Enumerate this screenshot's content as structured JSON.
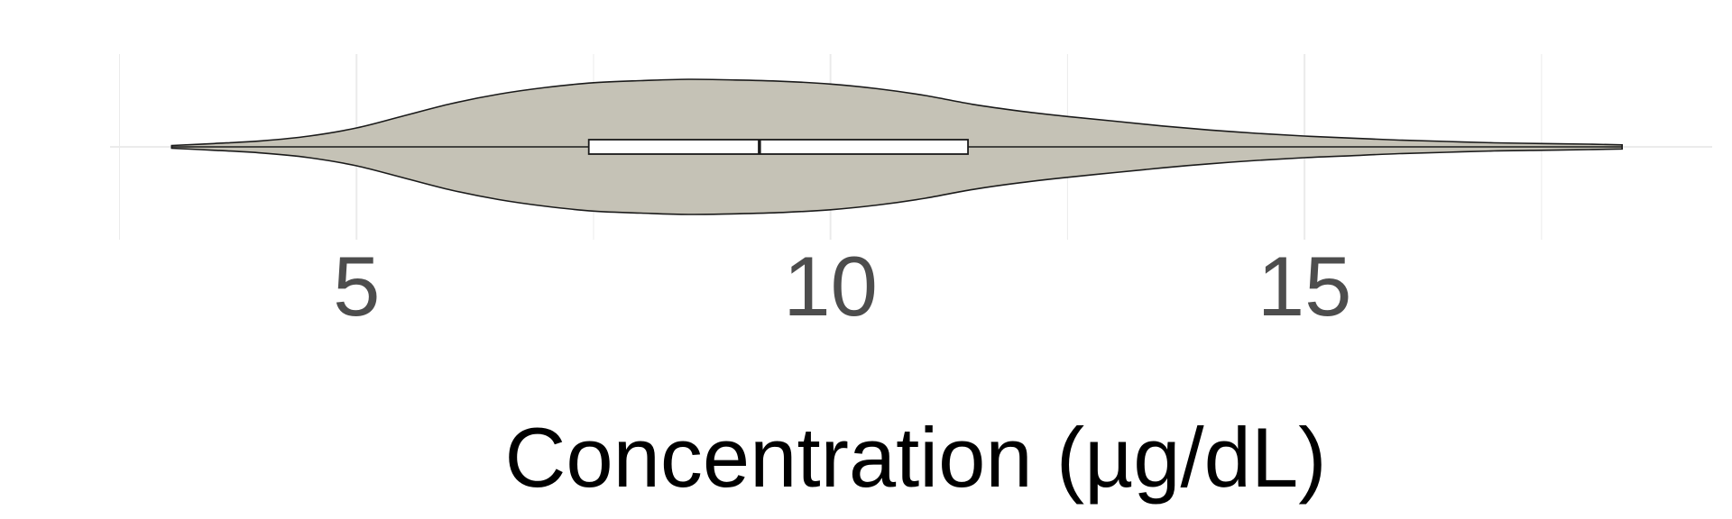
{
  "chart_data": {
    "type": "violin",
    "orientation": "horizontal",
    "title": "",
    "xlabel": "Concentration (µg/dL)",
    "ylabel": "",
    "xlim": [
      2.4,
      19.3
    ],
    "xticks": [
      5,
      10,
      15
    ],
    "xtick_labels": [
      "5",
      "10",
      "15"
    ],
    "grid": true,
    "legend": "none",
    "series": [
      {
        "min": 3.05,
        "q1": 7.45,
        "median": 9.25,
        "q3": 11.45,
        "max": 18.35,
        "density": [
          [
            3.05,
            0.02
          ],
          [
            3.5,
            0.05
          ],
          [
            4.0,
            0.09
          ],
          [
            4.5,
            0.16
          ],
          [
            5.0,
            0.28
          ],
          [
            5.5,
            0.46
          ],
          [
            6.0,
            0.64
          ],
          [
            6.5,
            0.78
          ],
          [
            7.0,
            0.88
          ],
          [
            7.5,
            0.95
          ],
          [
            8.0,
            0.98
          ],
          [
            8.5,
            1.0
          ],
          [
            9.0,
            0.99
          ],
          [
            9.5,
            0.97
          ],
          [
            10.0,
            0.93
          ],
          [
            10.5,
            0.86
          ],
          [
            11.0,
            0.76
          ],
          [
            11.5,
            0.63
          ],
          [
            12.0,
            0.53
          ],
          [
            12.5,
            0.45
          ],
          [
            13.0,
            0.38
          ],
          [
            13.5,
            0.31
          ],
          [
            14.0,
            0.25
          ],
          [
            14.5,
            0.2
          ],
          [
            15.0,
            0.16
          ],
          [
            15.5,
            0.13
          ],
          [
            16.0,
            0.1
          ],
          [
            16.5,
            0.08
          ],
          [
            17.0,
            0.06
          ],
          [
            17.5,
            0.05
          ],
          [
            18.0,
            0.04
          ],
          [
            18.35,
            0.03
          ]
        ]
      }
    ],
    "colors": {
      "violin_fill": "#c5c2b6",
      "violin_stroke": "#1a1a1a",
      "box_fill": "#ffffff",
      "box_stroke": "#1a1a1a",
      "grid": "#ebebeb"
    }
  }
}
